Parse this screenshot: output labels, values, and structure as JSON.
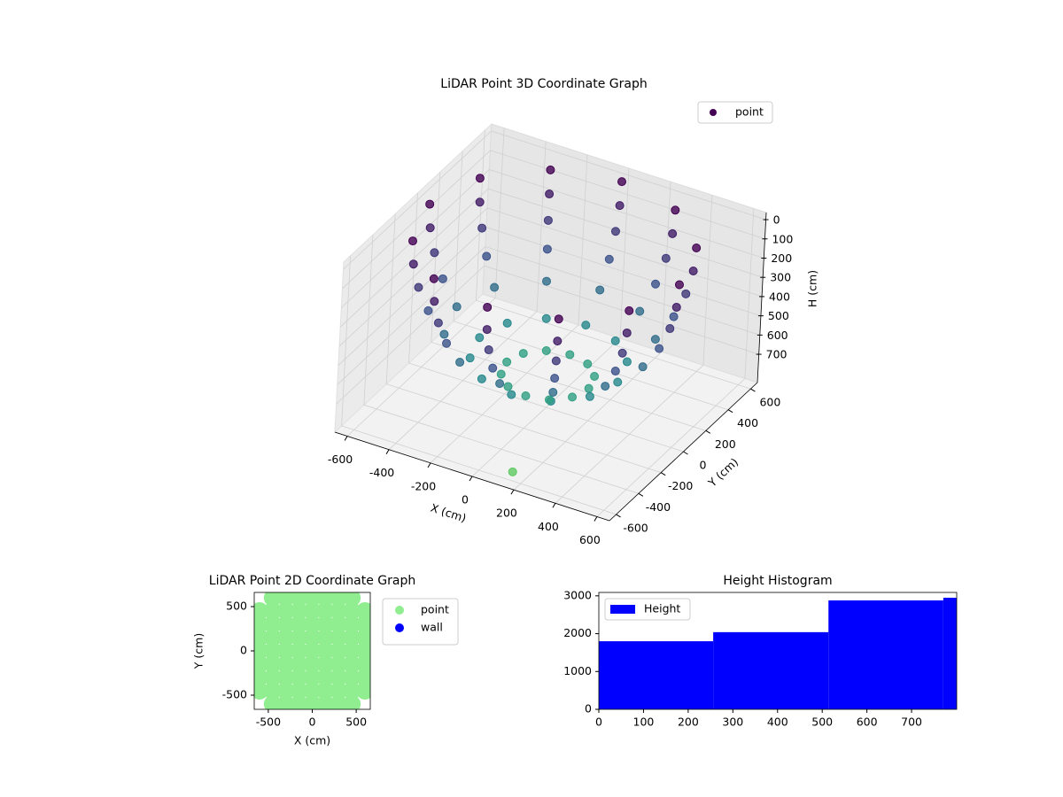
{
  "chart_data": [
    {
      "type": "scatter3d",
      "title": "LiDAR Point 3D Coordinate Graph",
      "xlabel": "X (cm)",
      "ylabel": "Y (cm)",
      "zlabel": "H (cm)",
      "xlim": [
        -660,
        660
      ],
      "ylim": [
        -660,
        660
      ],
      "zlim": [
        847,
        -37
      ],
      "xticks": [
        -600,
        -400,
        -200,
        0,
        200,
        400,
        600
      ],
      "yticks": [
        -600,
        -400,
        -200,
        0,
        200,
        400,
        600
      ],
      "zticks": [
        0,
        100,
        200,
        300,
        400,
        500,
        600,
        700
      ],
      "grid": true,
      "colormap": "viridis",
      "legend": "upper right",
      "series": [
        {
          "name": "point",
          "color": "#440154",
          "x": [
            600,
            592,
            566,
            520,
            447,
            332,
            197,
            520,
            513,
            490,
            450,
            387,
            288,
            171,
            300,
            296,
            283,
            260,
            224,
            166,
            99,
            0,
            0,
            0,
            0,
            0,
            0,
            0,
            -300,
            -296,
            -283,
            -260,
            -224,
            -166,
            -99,
            -520,
            -513,
            -490,
            -450,
            -387,
            -288,
            -171,
            -600,
            -592,
            -566,
            -520,
            -447,
            -332,
            -197,
            -520,
            -513,
            -490,
            -450,
            -387,
            -288,
            -171,
            -300,
            -296,
            -283,
            -260,
            -224,
            -166,
            -99,
            0,
            0,
            0,
            0,
            0,
            0,
            0,
            300,
            296,
            283,
            260,
            224,
            166,
            99,
            520,
            513,
            490,
            450,
            387,
            288,
            171,
            160
          ],
          "y": [
            0,
            0,
            0,
            0,
            0,
            0,
            0,
            300,
            296,
            283,
            260,
            224,
            166,
            99,
            520,
            513,
            490,
            450,
            387,
            288,
            171,
            600,
            592,
            566,
            520,
            447,
            332,
            197,
            520,
            513,
            490,
            450,
            387,
            288,
            171,
            300,
            296,
            283,
            260,
            224,
            166,
            99,
            0,
            0,
            0,
            0,
            0,
            0,
            0,
            -300,
            -296,
            -283,
            -260,
            -224,
            -166,
            -99,
            -520,
            -513,
            -490,
            -450,
            -387,
            -288,
            -171,
            -600,
            -592,
            -566,
            -520,
            -447,
            -332,
            -197,
            -520,
            -513,
            -490,
            -450,
            -387,
            -288,
            -171,
            -300,
            -296,
            -283,
            -260,
            -224,
            -166,
            -99,
            -600
          ],
          "z": [
            0,
            120,
            240,
            360,
            480,
            600,
            680,
            0,
            120,
            240,
            360,
            480,
            600,
            680,
            0,
            120,
            240,
            360,
            480,
            600,
            680,
            0,
            120,
            240,
            360,
            480,
            600,
            680,
            0,
            120,
            240,
            360,
            480,
            600,
            680,
            0,
            120,
            240,
            360,
            480,
            600,
            680,
            0,
            120,
            240,
            360,
            480,
            600,
            680,
            0,
            120,
            240,
            360,
            480,
            600,
            680,
            0,
            120,
            240,
            360,
            480,
            600,
            680,
            0,
            120,
            240,
            360,
            480,
            600,
            680,
            0,
            120,
            240,
            360,
            480,
            600,
            680,
            0,
            120,
            240,
            360,
            480,
            600,
            680,
            800
          ]
        }
      ]
    },
    {
      "type": "scatter",
      "title": "LiDAR Point 2D Coordinate Graph",
      "xlabel": "X (cm)",
      "ylabel": "Y (cm)",
      "xlim": [
        -660,
        660
      ],
      "ylim": [
        -660,
        660
      ],
      "xticks": [
        -500,
        0,
        500
      ],
      "yticks": [
        -500,
        0,
        500
      ],
      "legend": "outside",
      "series": [
        {
          "name": "point",
          "color": "#90ee90",
          "x": [
            -450,
            -300,
            -150,
            0,
            150,
            300,
            450,
            -600,
            -450,
            -300,
            -150,
            0,
            150,
            300,
            450,
            600,
            -600,
            -450,
            -300,
            -150,
            0,
            150,
            300,
            450,
            600,
            -600,
            -450,
            -300,
            -150,
            0,
            150,
            300,
            450,
            600,
            -600,
            -450,
            -300,
            -150,
            0,
            150,
            300,
            450,
            600,
            -600,
            -450,
            -300,
            -150,
            0,
            150,
            300,
            450,
            600,
            -600,
            -450,
            -300,
            -150,
            0,
            150,
            300,
            450,
            600,
            -600,
            -450,
            -300,
            -150,
            0,
            150,
            300,
            450,
            600,
            -450,
            -300,
            -150,
            0,
            150,
            300,
            450
          ],
          "y": [
            600,
            600,
            600,
            600,
            600,
            600,
            600,
            450,
            450,
            450,
            450,
            450,
            450,
            450,
            450,
            450,
            300,
            300,
            300,
            300,
            300,
            300,
            300,
            300,
            300,
            150,
            150,
            150,
            150,
            150,
            150,
            150,
            150,
            150,
            0,
            0,
            0,
            0,
            0,
            0,
            0,
            0,
            0,
            -150,
            -150,
            -150,
            -150,
            -150,
            -150,
            -150,
            -150,
            -150,
            -300,
            -300,
            -300,
            -300,
            -300,
            -300,
            -300,
            -300,
            -300,
            -450,
            -450,
            -450,
            -450,
            -450,
            -450,
            -450,
            -450,
            -450,
            -600,
            -600,
            -600,
            -600,
            -600,
            -600,
            -600
          ]
        },
        {
          "name": "wall",
          "color": "#0000ff",
          "x": [],
          "y": []
        }
      ]
    },
    {
      "type": "histogram",
      "title": "Height Histogram",
      "name": "Height",
      "color": "#0000ff",
      "bins": [
        0,
        256,
        514,
        771,
        801
      ],
      "values": [
        1800,
        2040,
        2880,
        2950
      ],
      "xlim": [
        0,
        801
      ],
      "ylim": [
        0,
        3090
      ],
      "xticks": [
        0,
        100,
        200,
        300,
        400,
        500,
        600,
        700
      ],
      "yticks": [
        0,
        1000,
        2000,
        3000
      ],
      "legend": "upper left"
    }
  ]
}
